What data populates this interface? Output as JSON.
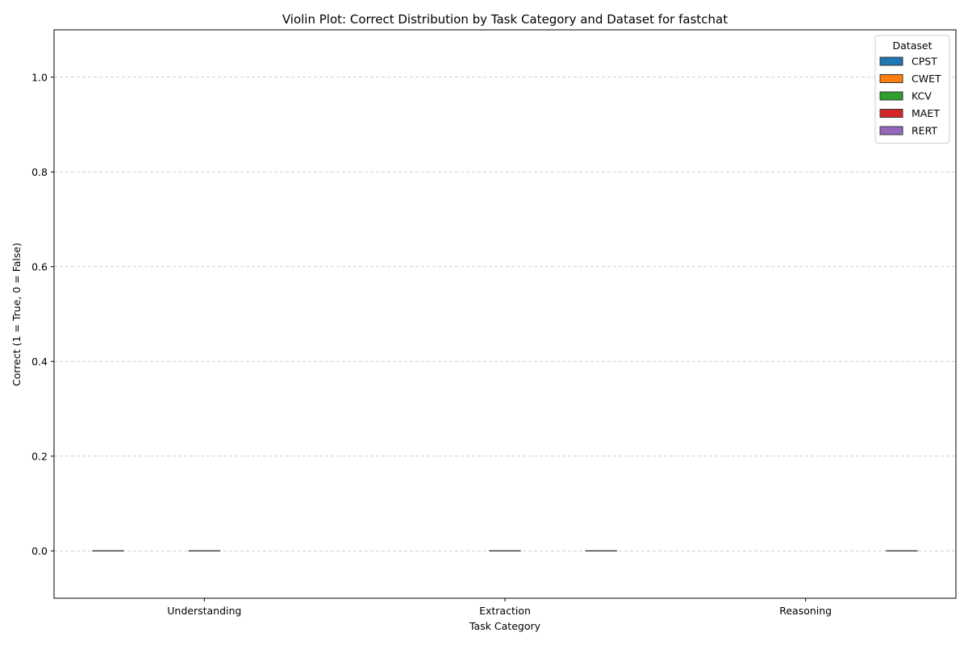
{
  "chart_data": {
    "type": "violin",
    "title": "Violin Plot: Correct Distribution by Task Category and Dataset for fastchat",
    "xlabel": "Task Category",
    "ylabel": "Correct (1 = True, 0 = False)",
    "categories": [
      "Understanding",
      "Extraction",
      "Reasoning"
    ],
    "ylim": [
      -0.1,
      1.1
    ],
    "yticks": [
      0.0,
      0.2,
      0.4,
      0.6,
      0.8,
      1.0
    ],
    "ytick_labels": [
      "0.0",
      "0.2",
      "0.4",
      "0.6",
      "0.8",
      "1.0"
    ],
    "grid": "y",
    "legend": {
      "title": "Dataset",
      "placement": "top-right"
    },
    "series": [
      {
        "name": "CPST",
        "color": "#1f77b4",
        "values": [
          0,
          null,
          null
        ]
      },
      {
        "name": "CWET",
        "color": "#ff7f0e",
        "values": [
          null,
          null,
          null
        ]
      },
      {
        "name": "KCV",
        "color": "#2ca02c",
        "values": [
          0,
          0,
          null
        ]
      },
      {
        "name": "MAET",
        "color": "#d62728",
        "values": [
          null,
          null,
          null
        ]
      },
      {
        "name": "RERT",
        "color": "#9467bd",
        "values": [
          null,
          0,
          0
        ]
      }
    ]
  }
}
